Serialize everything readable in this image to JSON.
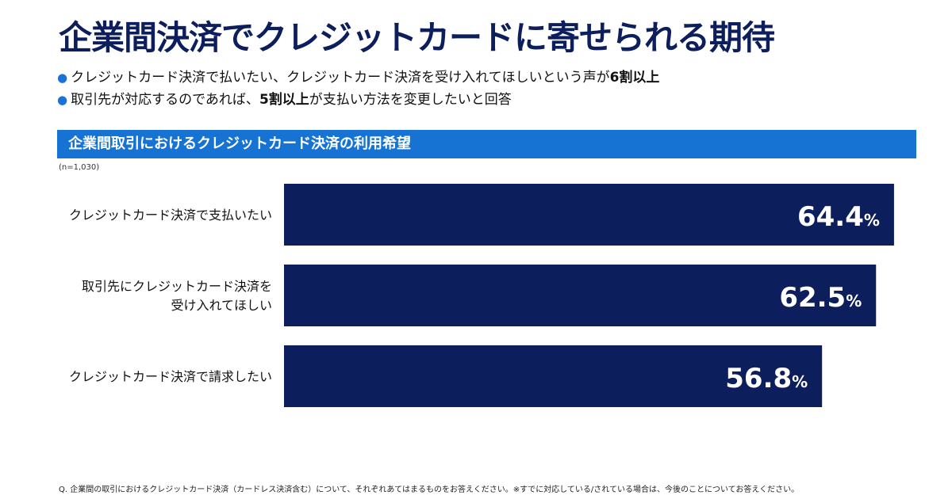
{
  "title": "企業間決済でクレジットカードに寄せられる期待",
  "bullets": [
    {
      "pre": "クレジットカード決済で払いたい、クレジットカード決済を受け入れてほしいという声が",
      "bold": "6割以上",
      "post": ""
    },
    {
      "pre": "取引先が対応するのであれば、",
      "bold": "5割以上",
      "post": "が支払い方法を変更したいと回答"
    }
  ],
  "section_title": "企業間取引におけるクレジットカード決済の利用希望",
  "sample_note": "(n=1,030)",
  "footnote": "Q. 企業間の取引におけるクレジットカード決済（カードレス決済含む）について、それぞれあてはまるものをお答えください。※すでに対応している/されている場合は、今後のことについてお答えください。",
  "colors": {
    "bar": "#0d1e5c",
    "accent": "#1673d3",
    "title": "#0d1e5c"
  },
  "chart_data": {
    "type": "bar",
    "orientation": "horizontal",
    "categories": [
      [
        "クレジットカード決済で支払いたい"
      ],
      [
        "取引先にクレジットカード決済を",
        "受け入れてほしい"
      ],
      [
        "クレジットカード決済で請求したい"
      ]
    ],
    "values": [
      64.4,
      62.5,
      56.8
    ],
    "unit": "%",
    "xlim": [
      0,
      100
    ],
    "grid": false,
    "legend": "none"
  }
}
